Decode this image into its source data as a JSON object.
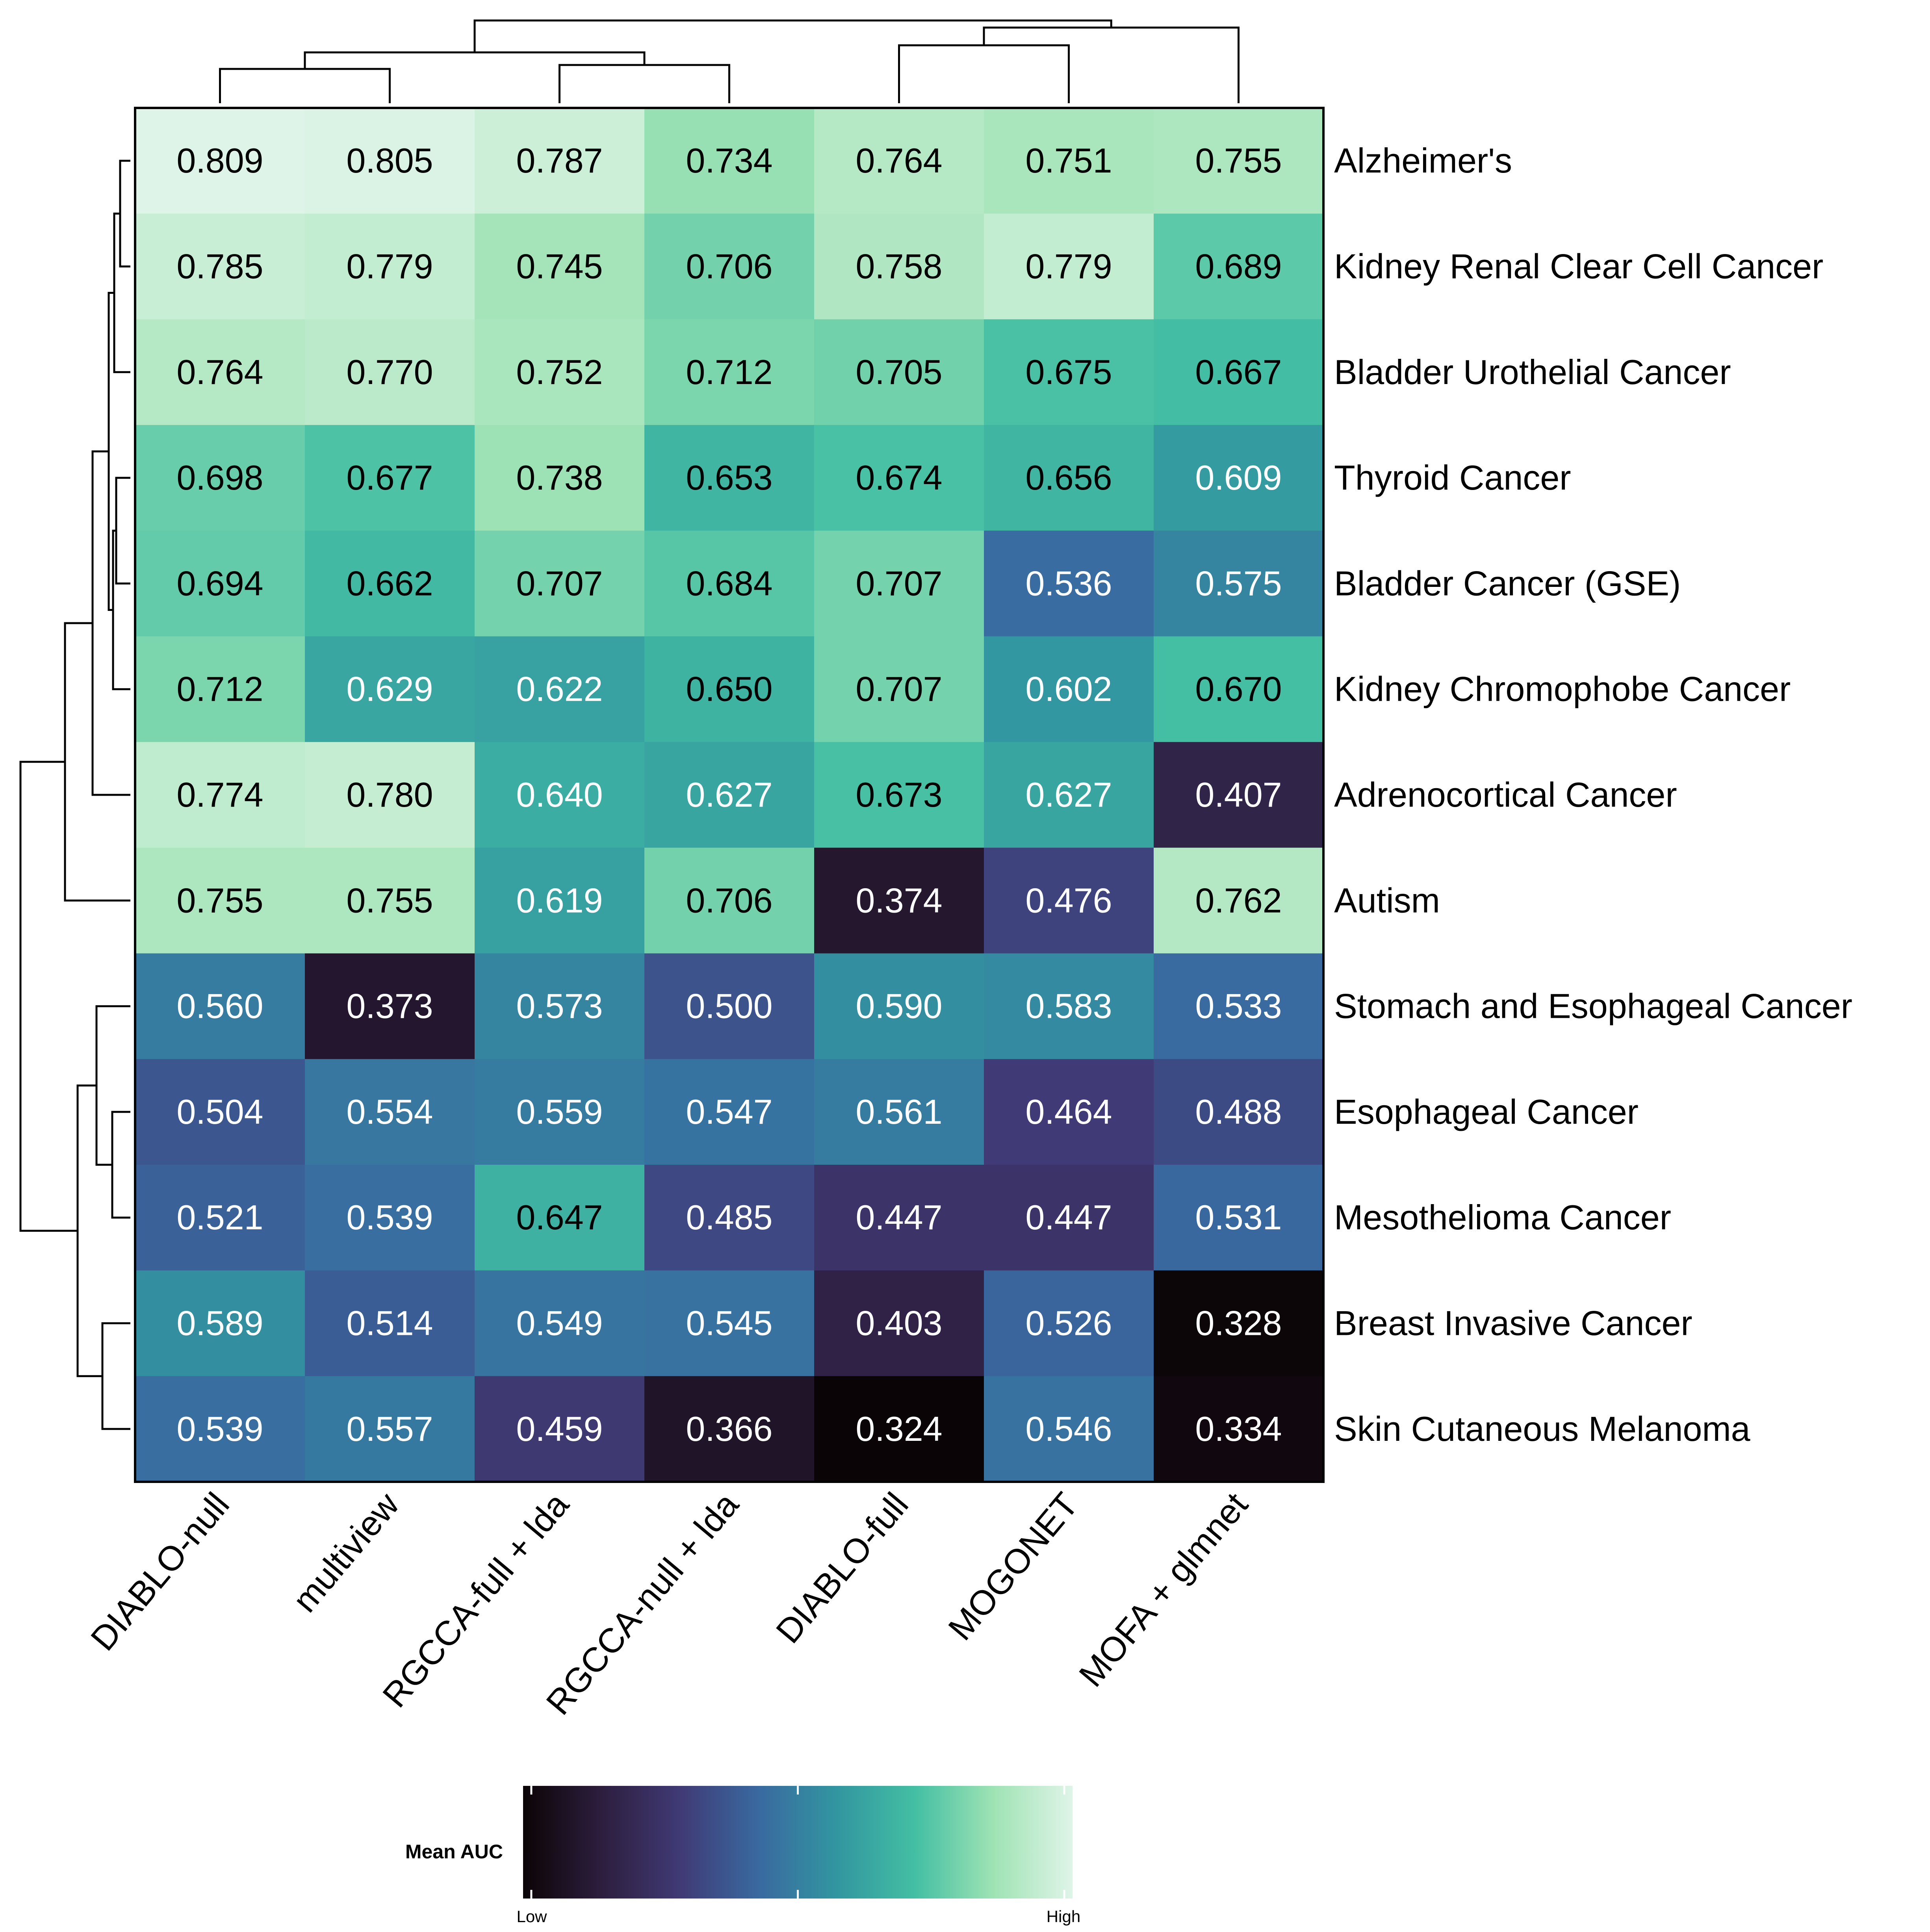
{
  "chart_data": {
    "type": "heatmap",
    "title": "",
    "xlabel": "",
    "ylabel": "",
    "columns": [
      "DIABLO-null",
      "multiview",
      "RGCCA-full + lda",
      "RGCCA-null + lda",
      "DIABLO-full",
      "MOGONET",
      "MOFA + glmnet"
    ],
    "rows": [
      "Alzheimer's",
      "Kidney Renal Clear Cell Cancer",
      "Bladder Urothelial Cancer",
      "Thyroid Cancer",
      "Bladder Cancer (GSE)",
      "Kidney Chromophobe Cancer",
      "Adrenocortical Cancer",
      "Autism",
      "Stomach and Esophageal Cancer",
      "Esophageal Cancer",
      "Mesothelioma Cancer",
      "Breast Invasive Cancer",
      "Skin Cutaneous Melanoma"
    ],
    "values": [
      [
        "0.809",
        "0.805",
        "0.787",
        "0.734",
        "0.764",
        "0.751",
        "0.755"
      ],
      [
        "0.785",
        "0.779",
        "0.745",
        "0.706",
        "0.758",
        "0.779",
        "0.689"
      ],
      [
        "0.764",
        "0.770",
        "0.752",
        "0.712",
        "0.705",
        "0.675",
        "0.667"
      ],
      [
        "0.698",
        "0.677",
        "0.738",
        "0.653",
        "0.674",
        "0.656",
        "0.609"
      ],
      [
        "0.694",
        "0.662",
        "0.707",
        "0.684",
        "0.707",
        "0.536",
        "0.575"
      ],
      [
        "0.712",
        "0.629",
        "0.622",
        "0.650",
        "0.707",
        "0.602",
        "0.670"
      ],
      [
        "0.774",
        "0.780",
        "0.640",
        "0.627",
        "0.673",
        "0.627",
        "0.407"
      ],
      [
        "0.755",
        "0.755",
        "0.619",
        "0.706",
        "0.374",
        "0.476",
        "0.762"
      ],
      [
        "0.560",
        "0.373",
        "0.573",
        "0.500",
        "0.590",
        "0.583",
        "0.533"
      ],
      [
        "0.504",
        "0.554",
        "0.559",
        "0.547",
        "0.561",
        "0.464",
        "0.488"
      ],
      [
        "0.521",
        "0.539",
        "0.647",
        "0.485",
        "0.447",
        "0.447",
        "0.531"
      ],
      [
        "0.589",
        "0.514",
        "0.549",
        "0.545",
        "0.403",
        "0.526",
        "0.328"
      ],
      [
        "0.539",
        "0.557",
        "0.459",
        "0.366",
        "0.324",
        "0.546",
        "0.334"
      ]
    ],
    "colorbar": {
      "title": "Mean AUC",
      "low_label": "Low",
      "high_label": "High",
      "range": [
        0.324,
        0.809
      ],
      "colors": [
        "#0b0406",
        "#2d1e3e",
        "#403a75",
        "#3969a0",
        "#3296a0",
        "#44bfa3",
        "#9fe3b4",
        "#dff4e8"
      ]
    },
    "legend_position": "bottom",
    "column_dendrogram": true,
    "row_dendrogram": true
  }
}
